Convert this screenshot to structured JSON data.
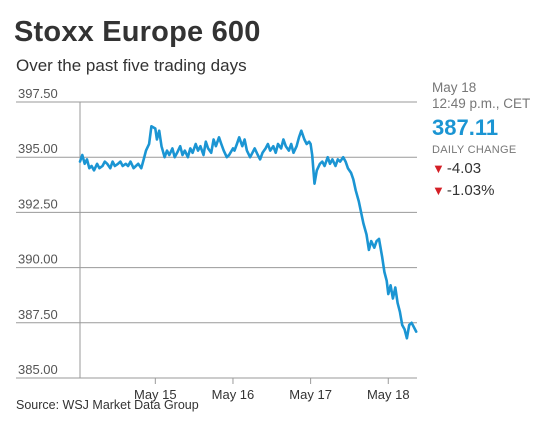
{
  "header": {
    "title": "Stoxx Europe 600",
    "subtitle": "Over the past five trading days"
  },
  "quote": {
    "date": "May 18",
    "time": "12:49 p.m., CET",
    "price": "387.11",
    "change_label": "DAILY CHANGE",
    "change_points": "-4.03",
    "change_percent": "-1.03%",
    "down_color": "#d41f26",
    "price_color": "#1b95d3",
    "direction_icon": "down-triangle-icon"
  },
  "source": "Source: WSJ Market Data Group",
  "chart_data": {
    "type": "line",
    "title": "Stoxx Europe 600",
    "subtitle": "Over the past five trading days",
    "ylim": [
      385.0,
      397.5
    ],
    "yticks": [
      "397.50",
      "395.00",
      "392.50",
      "390.00",
      "387.50",
      "385.00"
    ],
    "ytick_values": [
      397.5,
      395.0,
      392.5,
      390.0,
      387.5,
      385.0
    ],
    "xtick_labels": [
      "May 15",
      "May 16",
      "May 17",
      "May 18"
    ],
    "xtick_positions": [
      1,
      2,
      3,
      4
    ],
    "xlim": [
      0.03,
      4.37
    ],
    "grid": true,
    "line_color": "#1b95d3",
    "series": [
      {
        "x": [
          0.03,
          0.06,
          0.09,
          0.12,
          0.15,
          0.18,
          0.21,
          0.25,
          0.28,
          0.32,
          0.35,
          0.38,
          0.42,
          0.45,
          0.48,
          0.52,
          0.55,
          0.58,
          0.62,
          0.65,
          0.68,
          0.72,
          0.75,
          0.78,
          0.82,
          0.85,
          0.88,
          0.92,
          0.95,
          1.0,
          1.02,
          1.05,
          1.08,
          1.12,
          1.15,
          1.18,
          1.22,
          1.25,
          1.28,
          1.32,
          1.35,
          1.38,
          1.42,
          1.45,
          1.48,
          1.52,
          1.55,
          1.58,
          1.62,
          1.65,
          1.68,
          1.72,
          1.75,
          1.78,
          1.82,
          1.85,
          1.88,
          1.92,
          1.95,
          2.0,
          2.02,
          2.05,
          2.08,
          2.12,
          2.15,
          2.18,
          2.22,
          2.25,
          2.28,
          2.32,
          2.35,
          2.38,
          2.42,
          2.45,
          2.48,
          2.52,
          2.55,
          2.58,
          2.62,
          2.65,
          2.68,
          2.72,
          2.75,
          2.78,
          2.82,
          2.85,
          2.88,
          2.92,
          2.95,
          2.98,
          3.0,
          3.02,
          3.05,
          3.08,
          3.12,
          3.15,
          3.18,
          3.22,
          3.25,
          3.28,
          3.32,
          3.35,
          3.38,
          3.42,
          3.45,
          3.48,
          3.52,
          3.55,
          3.58,
          3.62,
          3.65,
          3.68,
          3.72,
          3.75,
          3.78,
          3.82,
          3.85,
          3.88,
          3.92,
          3.95,
          3.98,
          4.0,
          4.03,
          4.06,
          4.09,
          4.12,
          4.15,
          4.18,
          4.21,
          4.24,
          4.27,
          4.3,
          4.33,
          4.36
        ],
        "values": [
          394.8,
          395.1,
          394.7,
          394.9,
          394.5,
          394.6,
          394.4,
          394.7,
          394.5,
          394.6,
          394.8,
          394.7,
          394.5,
          394.8,
          394.6,
          394.7,
          394.8,
          394.6,
          394.7,
          394.6,
          394.8,
          394.5,
          394.6,
          394.7,
          394.5,
          394.9,
          395.3,
          395.6,
          396.4,
          396.3,
          395.8,
          396.2,
          395.5,
          395.0,
          395.3,
          395.1,
          395.4,
          395.0,
          395.2,
          395.5,
          395.1,
          395.3,
          395.0,
          395.4,
          395.2,
          395.6,
          395.3,
          395.5,
          395.1,
          395.7,
          395.4,
          395.2,
          395.8,
          395.5,
          395.9,
          395.6,
          395.3,
          395.0,
          395.1,
          395.4,
          395.3,
          395.6,
          395.9,
          395.5,
          395.8,
          395.3,
          395.0,
          395.2,
          395.4,
          395.1,
          394.9,
          395.2,
          395.4,
          395.6,
          395.3,
          395.5,
          395.2,
          395.6,
          395.4,
          395.8,
          395.5,
          395.3,
          395.6,
          395.2,
          395.5,
          395.9,
          396.2,
          395.8,
          395.6,
          395.7,
          395.6,
          395.1,
          393.8,
          394.4,
          394.7,
          394.8,
          394.6,
          395.0,
          394.7,
          394.9,
          394.6,
          394.9,
          394.8,
          395.0,
          394.8,
          394.5,
          394.3,
          394.0,
          393.5,
          393.0,
          392.5,
          392.0,
          391.5,
          390.8,
          391.2,
          390.9,
          391.2,
          391.3,
          390.5,
          389.8,
          389.4,
          388.8,
          389.2,
          388.6,
          389.1,
          388.4,
          388.0,
          387.4,
          387.2,
          386.8,
          387.4,
          387.5,
          387.3,
          387.1
        ]
      }
    ]
  }
}
